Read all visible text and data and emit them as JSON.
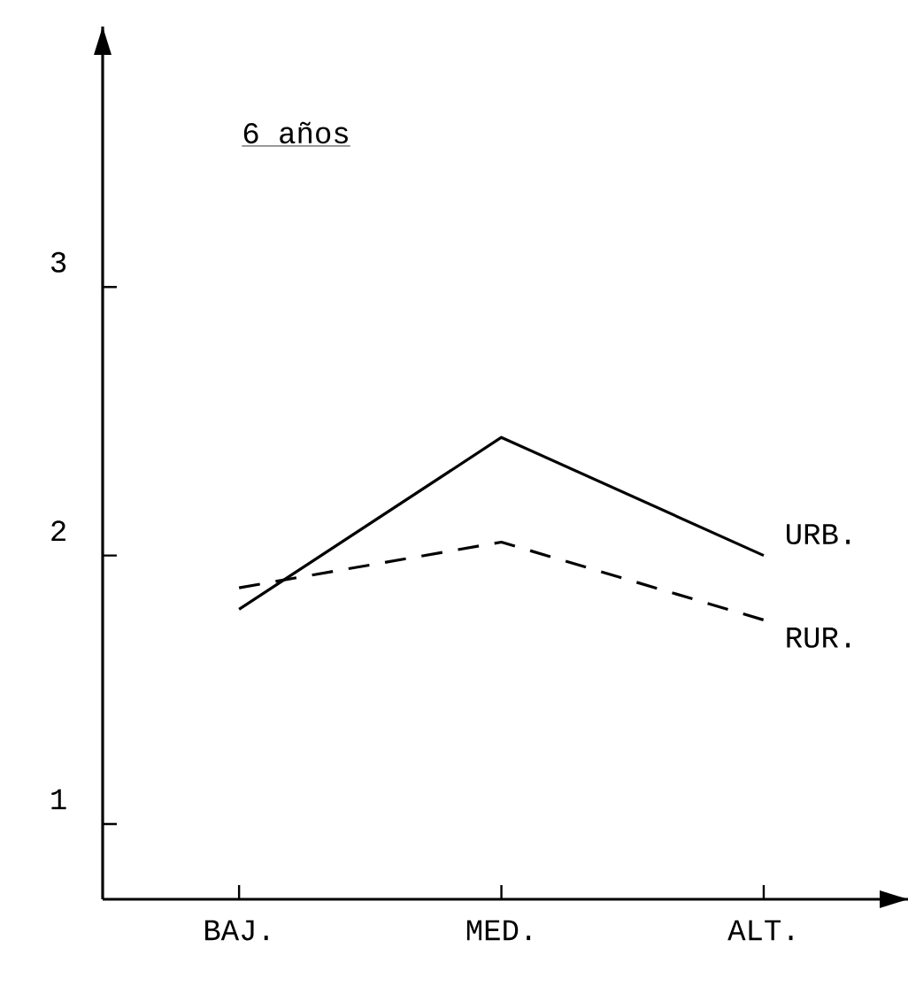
{
  "chart_data": {
    "type": "line",
    "title": "6 años",
    "categories": [
      "BAJ.",
      "MED.",
      "ALT."
    ],
    "series": [
      {
        "name": "URB.",
        "color": "#000000",
        "line_style": "solid",
        "values": [
          1.8,
          2.44,
          2.0
        ]
      },
      {
        "name": "RUR.",
        "color": "#000000",
        "line_style": "dashed",
        "values": [
          1.88,
          2.05,
          1.76
        ]
      }
    ],
    "ylim": [
      0.72,
      3.97
    ],
    "yticks": [
      1,
      2,
      3
    ],
    "marker": "none",
    "grid": false,
    "legend": false
  }
}
